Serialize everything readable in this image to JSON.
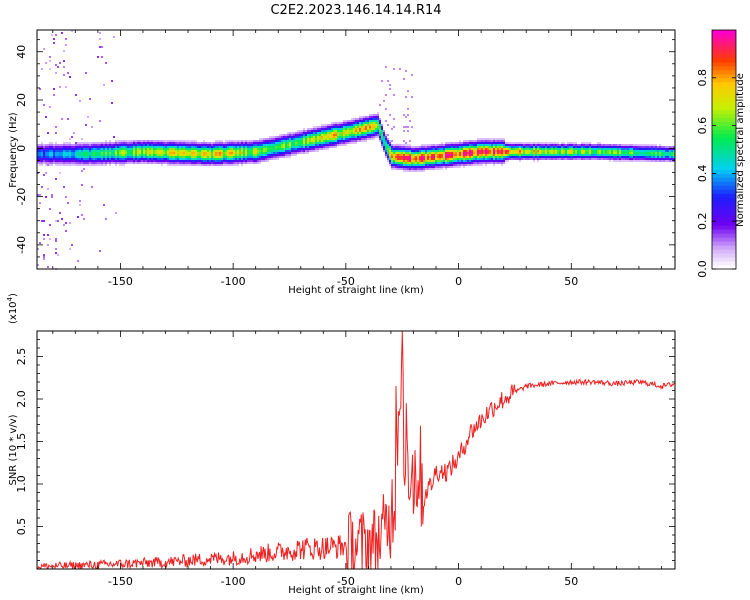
{
  "figure_title": "C2E2.2023.146.14.14.R14",
  "colors": {
    "snr_line": "#ee2020",
    "axis": "#000000"
  },
  "chart_data": [
    {
      "type": "heatmap",
      "title": "",
      "xlabel": "Height of straight line (km)",
      "ylabel": "Frequency (Hz)",
      "xlim": [
        -187,
        96
      ],
      "ylim": [
        -50,
        49
      ],
      "x_ticks": [
        -150,
        -100,
        -50,
        0,
        50
      ],
      "x_tick_labels": [
        "-150",
        "-100",
        "-50",
        "0",
        "50"
      ],
      "y_ticks": [
        -40,
        -20,
        0,
        20,
        40
      ],
      "y_tick_labels": [
        "-40",
        "-20",
        "0",
        "20",
        "40"
      ],
      "ridge": {
        "description_points_x": [
          -187,
          -165,
          -140,
          -110,
          -90,
          -75,
          -60,
          -45,
          -36,
          -33,
          -30,
          -20,
          -10,
          0,
          10,
          30,
          60,
          96
        ],
        "center_frequency_hz": [
          -2,
          -2,
          -1,
          -2,
          -1,
          2,
          5,
          8,
          10,
          2,
          -3,
          -4,
          -3,
          -2,
          -1,
          -1,
          -1,
          -2
        ],
        "peak_amplitude": [
          0.35,
          0.5,
          0.7,
          0.75,
          0.7,
          0.6,
          0.75,
          0.8,
          0.7,
          0.5,
          0.85,
          0.95,
          0.9,
          0.95,
          0.95,
          0.75,
          0.65,
          0.55
        ]
      },
      "colorbar": {
        "label": "Normalized spectral amplitude",
        "range": [
          0,
          1
        ],
        "ticks": [
          0.0,
          0.2,
          0.4,
          0.6,
          0.8
        ],
        "tick_labels": [
          "0.0",
          "0.2",
          "0.4",
          "0.6",
          "0.8"
        ],
        "colormap": "rainbow (white-purple-blue-cyan-green-yellow-orange-red-magenta)"
      }
    },
    {
      "type": "line",
      "title": "",
      "xlabel": "Height of straight line (km)",
      "ylabel": "SNR (10 * v/v)",
      "y_scale_label": "(x10",
      "y_scale_exponent": "4",
      "y_scale_close": ")",
      "xlim": [
        -187,
        96
      ],
      "ylim": [
        0,
        2.8
      ],
      "x_ticks": [
        -150,
        -100,
        -50,
        0,
        50
      ],
      "x_tick_labels": [
        "-150",
        "-100",
        "-50",
        "0",
        "50"
      ],
      "y_ticks": [
        0.5,
        1.0,
        1.5,
        2.0,
        2.5
      ],
      "y_tick_labels": [
        "0.5",
        "1.0",
        "1.5",
        "2.0",
        "2.5"
      ],
      "series": [
        {
          "name": "SNR",
          "x": [
            -187,
            -170,
            -150,
            -130,
            -120,
            -110,
            -100,
            -90,
            -80,
            -70,
            -60,
            -50,
            -40,
            -35,
            -30,
            -28,
            -26,
            -25,
            -24,
            -22,
            -20,
            -18,
            -15,
            -12,
            -10,
            -5,
            0,
            5,
            10,
            15,
            20,
            25,
            30,
            40,
            50,
            60,
            70,
            80,
            85,
            90,
            96
          ],
          "values": [
            0.03,
            0.04,
            0.06,
            0.08,
            0.1,
            0.12,
            0.13,
            0.17,
            0.2,
            0.24,
            0.25,
            0.27,
            0.3,
            0.35,
            0.6,
            1.0,
            1.8,
            2.6,
            1.6,
            1.3,
            1.1,
            1.2,
            0.9,
            1.0,
            1.15,
            1.15,
            1.3,
            1.6,
            1.75,
            1.9,
            2.0,
            2.08,
            2.15,
            2.18,
            2.2,
            2.2,
            2.18,
            2.2,
            2.18,
            2.15,
            2.18
          ]
        }
      ]
    }
  ]
}
